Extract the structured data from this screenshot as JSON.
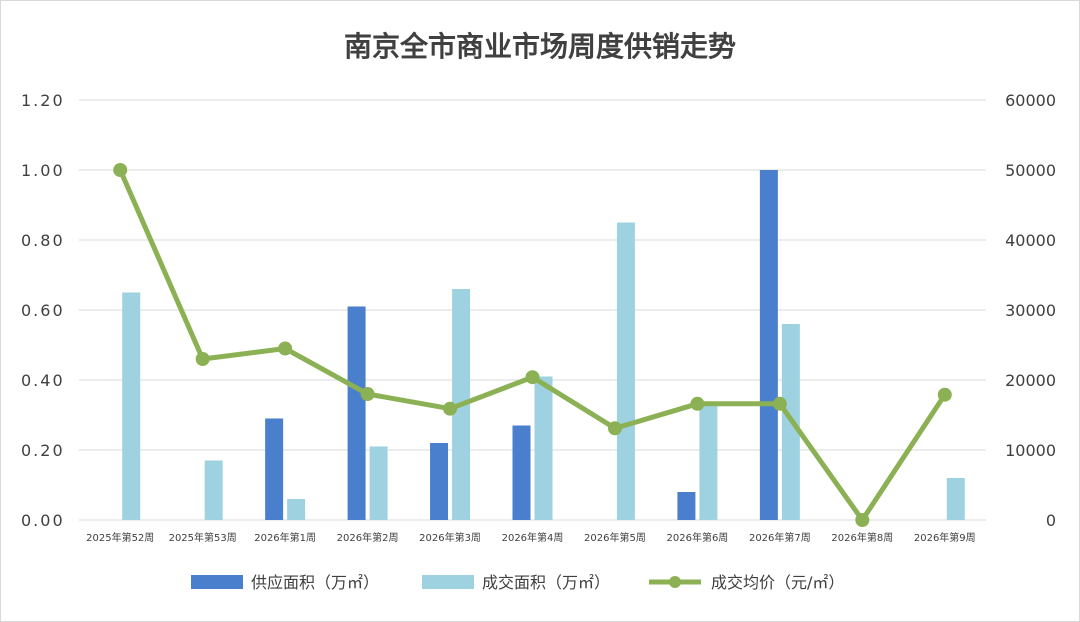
{
  "chart_data": {
    "type": "bar",
    "title": "南京全市商业市场周度供销走势",
    "categories": [
      "2025年第52周",
      "2025年第53周",
      "2026年第1周",
      "2026年第2周",
      "2026年第3周",
      "2026年第4周",
      "2026年第5周",
      "2026年第6周",
      "2026年第7周",
      "2026年第8周",
      "2026年第9周"
    ],
    "y_left": {
      "range": [
        0,
        1.2
      ],
      "ticks": [
        "0.00",
        "0.20",
        "0.40",
        "0.60",
        "0.80",
        "1.00",
        "1.20"
      ]
    },
    "y_right": {
      "range": [
        0,
        60000
      ],
      "ticks": [
        "0",
        "10000",
        "20000",
        "30000",
        "40000",
        "50000",
        "60000"
      ]
    },
    "series": [
      {
        "name": "供应面积（万㎡）",
        "type": "bar",
        "axis": "left",
        "color": "#4a7fcd",
        "values": [
          null,
          null,
          0.29,
          0.61,
          0.22,
          0.27,
          null,
          0.08,
          1.0,
          null,
          null
        ]
      },
      {
        "name": "成交面积（万㎡）",
        "type": "bar",
        "axis": "left",
        "color": "#9fd2e0",
        "values": [
          0.65,
          0.17,
          0.06,
          0.21,
          0.66,
          0.41,
          0.85,
          0.33,
          0.56,
          null,
          0.12
        ]
      },
      {
        "name": "成交均价（元/㎡）",
        "type": "line",
        "axis": "right",
        "color": "#8cb155",
        "values": [
          50000,
          23000,
          24500,
          18000,
          15900,
          20400,
          13100,
          16600,
          16600,
          0,
          17900
        ]
      }
    ],
    "grid": true,
    "legend": "bottom"
  }
}
